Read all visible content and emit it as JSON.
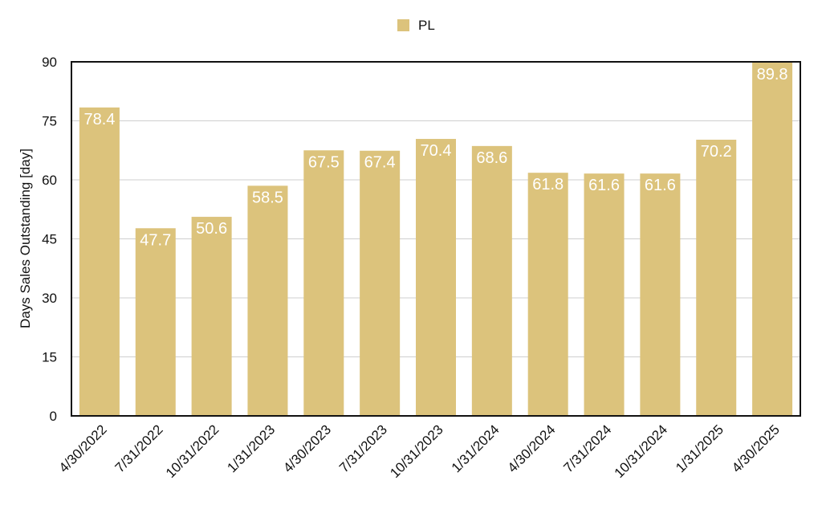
{
  "chart_data": {
    "type": "bar",
    "title": "",
    "xlabel": "",
    "ylabel": "Days Sales Outstanding [day]",
    "ylim": [
      0,
      90
    ],
    "yticks": [
      0,
      15,
      30,
      45,
      60,
      75,
      90
    ],
    "grid": true,
    "legend_position": "top-center",
    "categories": [
      "4/30/2022",
      "7/31/2022",
      "10/31/2022",
      "1/31/2023",
      "4/30/2023",
      "7/31/2023",
      "10/31/2023",
      "1/31/2024",
      "4/30/2024",
      "7/31/2024",
      "10/31/2024",
      "1/31/2025",
      "4/30/2025"
    ],
    "series": [
      {
        "name": "PL",
        "color": "#dcc37c",
        "values": [
          78.4,
          47.7,
          50.6,
          58.5,
          67.5,
          67.4,
          70.4,
          68.6,
          61.8,
          61.6,
          61.6,
          70.2,
          89.8
        ],
        "labels": [
          "78.4",
          "47.7",
          "50.6",
          "58.5",
          "67.5",
          "67.4",
          "70.4",
          "68.6",
          "61.8",
          "61.6",
          "61.6",
          "70.2",
          "89.8"
        ]
      }
    ]
  }
}
